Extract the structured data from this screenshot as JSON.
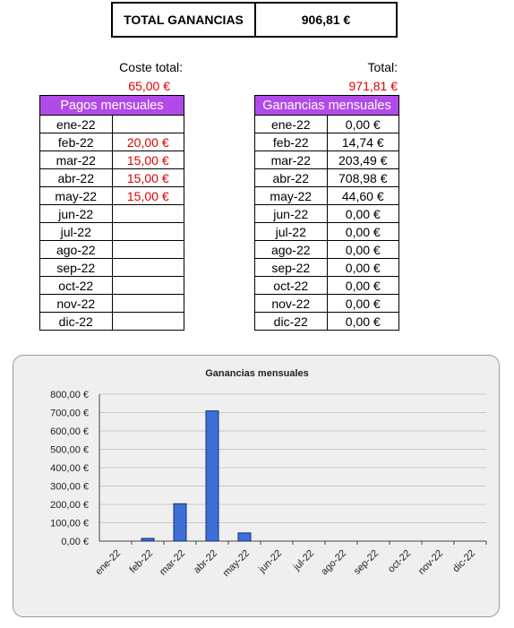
{
  "summary": {
    "label": "TOTAL GANANCIAS",
    "value": "906,81 €"
  },
  "costs": {
    "caption": "Coste total:",
    "total": "65,00 €",
    "header": "Pagos mensuales",
    "rows": [
      {
        "month": "ene-22",
        "amount": ""
      },
      {
        "month": "feb-22",
        "amount": "20,00 €"
      },
      {
        "month": "mar-22",
        "amount": "15,00 €"
      },
      {
        "month": "abr-22",
        "amount": "15,00 €"
      },
      {
        "month": "may-22",
        "amount": "15,00 €"
      },
      {
        "month": "jun-22",
        "amount": ""
      },
      {
        "month": "jul-22",
        "amount": ""
      },
      {
        "month": "ago-22",
        "amount": ""
      },
      {
        "month": "sep-22",
        "amount": ""
      },
      {
        "month": "oct-22",
        "amount": ""
      },
      {
        "month": "nov-22",
        "amount": ""
      },
      {
        "month": "dic-22",
        "amount": ""
      }
    ]
  },
  "earnings": {
    "caption": "Total:",
    "total": "971,81 €",
    "header": "Ganancias mensuales",
    "rows": [
      {
        "month": "ene-22",
        "amount": "0,00 €"
      },
      {
        "month": "feb-22",
        "amount": "14,74 €"
      },
      {
        "month": "mar-22",
        "amount": "203,49 €"
      },
      {
        "month": "abr-22",
        "amount": "708,98 €"
      },
      {
        "month": "may-22",
        "amount": "44,60 €"
      },
      {
        "month": "jun-22",
        "amount": "0,00 €"
      },
      {
        "month": "jul-22",
        "amount": "0,00 €"
      },
      {
        "month": "ago-22",
        "amount": "0,00 €"
      },
      {
        "month": "sep-22",
        "amount": "0,00 €"
      },
      {
        "month": "oct-22",
        "amount": "0,00 €"
      },
      {
        "month": "nov-22",
        "amount": "0,00 €"
      },
      {
        "month": "dic-22",
        "amount": "0,00 €"
      }
    ]
  },
  "chart_data": {
    "type": "bar",
    "title": "Ganancias mensuales",
    "categories": [
      "ene-22",
      "feb-22",
      "mar-22",
      "abr-22",
      "may-22",
      "jun-22",
      "jul-22",
      "ago-22",
      "sep-22",
      "oct-22",
      "nov-22",
      "dic-22"
    ],
    "values": [
      0,
      14.74,
      203.49,
      708.98,
      44.6,
      0,
      0,
      0,
      0,
      0,
      0,
      0
    ],
    "yticks": [
      "0,00 €",
      "100,00 €",
      "200,00 €",
      "300,00 €",
      "400,00 €",
      "500,00 €",
      "600,00 €",
      "700,00 €",
      "800,00 €"
    ],
    "ylim": [
      0,
      800
    ],
    "grid": true,
    "bar_color": "#3c6fd8"
  }
}
